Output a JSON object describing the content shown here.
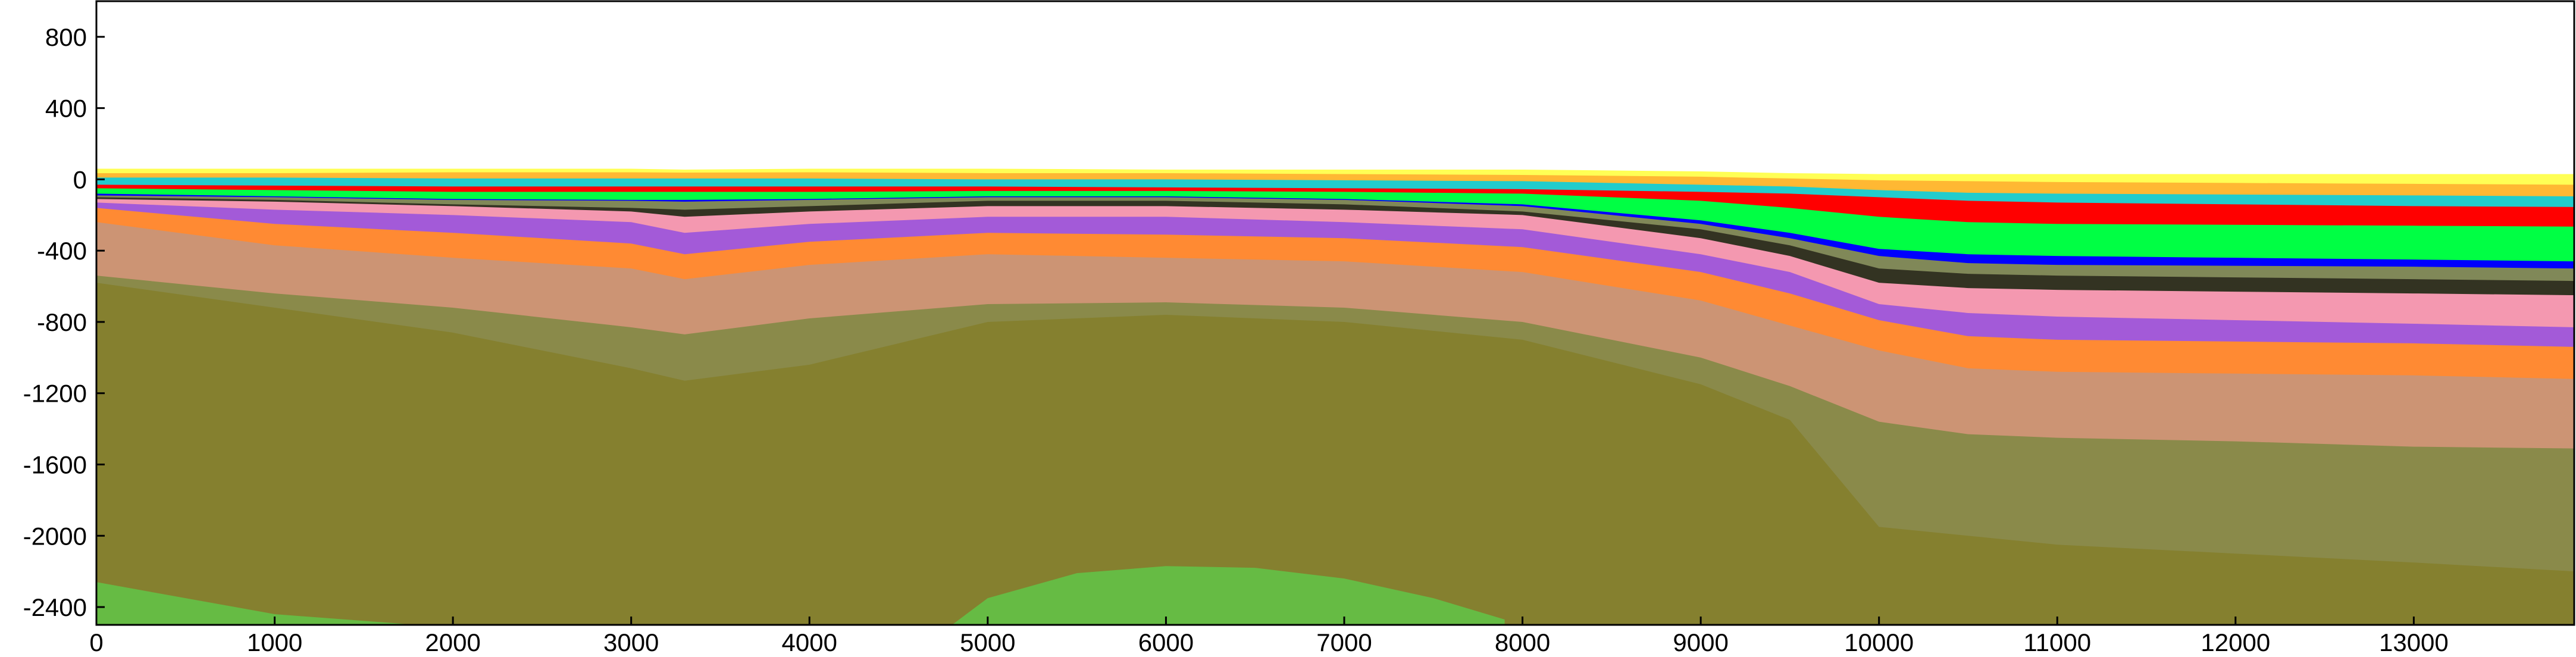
{
  "chart_data": {
    "type": "area",
    "title": "",
    "xlabel": "",
    "ylabel": "",
    "xlim": [
      0,
      13900
    ],
    "ylim": [
      -2500,
      1000
    ],
    "grid": false,
    "x_ticks": [
      0,
      1000,
      2000,
      3000,
      4000,
      5000,
      6000,
      7000,
      8000,
      9000,
      10000,
      11000,
      12000,
      13000
    ],
    "x_tick_labels": [
      "0",
      "1000",
      "2000",
      "3000",
      "4000",
      "5000",
      "6000",
      "7000",
      "8000",
      "9000",
      "10000",
      "11000",
      "12000",
      "13000"
    ],
    "y_ticks": [
      800,
      400,
      0,
      -400,
      -800,
      -1200,
      -1600,
      -2000,
      -2400
    ],
    "y_tick_labels": [
      "800",
      "400",
      "0",
      "-400",
      "-800",
      "-1200",
      "-1600",
      "-2000",
      "-2400"
    ],
    "x": [
      0,
      1000,
      2000,
      3000,
      3300,
      4000,
      5000,
      6000,
      7000,
      8000,
      9000,
      9500,
      10000,
      10500,
      11000,
      12000,
      13000,
      13900
    ],
    "layers": [
      {
        "color": "#ffff55",
        "top": [
          60,
          60,
          60,
          60,
          55,
          60,
          60,
          55,
          55,
          55,
          45,
          35,
          30,
          30,
          30,
          30,
          30,
          30
        ]
      },
      {
        "color": "#ffb833",
        "top": [
          35,
          35,
          40,
          40,
          38,
          40,
          35,
          35,
          30,
          25,
          15,
          5,
          -5,
          -10,
          -15,
          -20,
          -25,
          -30
        ]
      },
      {
        "color": "#22cccc",
        "top": [
          10,
          10,
          5,
          5,
          5,
          5,
          0,
          0,
          -5,
          -10,
          -30,
          -40,
          -60,
          -75,
          -80,
          -85,
          -90,
          -95
        ]
      },
      {
        "color": "#ff0000",
        "top": [
          -30,
          -35,
          -40,
          -40,
          -40,
          -40,
          -40,
          -45,
          -50,
          -55,
          -70,
          -80,
          -100,
          -120,
          -130,
          -140,
          -150,
          -155
        ]
      },
      {
        "color": "#00ff44",
        "top": [
          -50,
          -60,
          -70,
          -70,
          -70,
          -70,
          -65,
          -65,
          -70,
          -80,
          -120,
          -160,
          -210,
          -240,
          -250,
          -255,
          -260,
          -265
        ]
      },
      {
        "color": "#0000ff",
        "top": [
          -80,
          -95,
          -110,
          -115,
          -115,
          -110,
          -95,
          -95,
          -110,
          -140,
          -230,
          -300,
          -390,
          -420,
          -430,
          -440,
          -450,
          -460
        ]
      },
      {
        "color": "#808858",
        "top": [
          -90,
          -100,
          -115,
          -120,
          -125,
          -115,
          -100,
          -100,
          -115,
          -150,
          -250,
          -330,
          -430,
          -470,
          -480,
          -485,
          -490,
          -500
        ]
      },
      {
        "color": "#333322",
        "top": [
          -100,
          -115,
          -140,
          -160,
          -170,
          -150,
          -120,
          -120,
          -140,
          -180,
          -280,
          -370,
          -500,
          -530,
          -540,
          -550,
          -560,
          -570
        ]
      },
      {
        "color": "#f498b0",
        "top": [
          -110,
          -125,
          -150,
          -180,
          -210,
          -180,
          -150,
          -150,
          -170,
          -200,
          -330,
          -430,
          -580,
          -610,
          -620,
          -630,
          -640,
          -650
        ]
      },
      {
        "color": "#a35ad8",
        "top": [
          -130,
          -170,
          -200,
          -240,
          -300,
          -250,
          -210,
          -210,
          -240,
          -280,
          -420,
          -520,
          -700,
          -750,
          -770,
          -790,
          -810,
          -830
        ]
      },
      {
        "color": "#ff8a33",
        "top": [
          -160,
          -250,
          -300,
          -360,
          -420,
          -350,
          -300,
          -310,
          -330,
          -380,
          -520,
          -640,
          -790,
          -880,
          -900,
          -910,
          -920,
          -940
        ]
      },
      {
        "color": "#cc9474",
        "top": [
          -240,
          -370,
          -440,
          -500,
          -560,
          -480,
          -420,
          -440,
          -460,
          -520,
          -680,
          -820,
          -960,
          -1060,
          -1080,
          -1090,
          -1100,
          -1120
        ]
      },
      {
        "color": "#8a8a4a",
        "top": [
          -540,
          -640,
          -720,
          -830,
          -870,
          -780,
          -700,
          -690,
          -720,
          -800,
          -1000,
          -1160,
          -1360,
          -1430,
          -1450,
          -1470,
          -1500,
          -1510
        ]
      },
      {
        "color": "#85802f",
        "top": [
          -580,
          -720,
          -860,
          -1060,
          -1130,
          -1040,
          -800,
          -760,
          -800,
          -900,
          -1150,
          -1350,
          -1950,
          -2000,
          -2050,
          -2100,
          -2150,
          -2200
        ]
      }
    ],
    "green_bodies": [
      {
        "color": "#66bb44",
        "x": [
          0,
          1000,
          1800
        ],
        "y": [
          -2260,
          -2440,
          -2500
        ]
      },
      {
        "color": "#66bb44",
        "x": [
          4800,
          5000,
          5500,
          6000,
          6500,
          7000,
          7500,
          7900
        ],
        "y": [
          -2500,
          -2350,
          -2210,
          -2170,
          -2180,
          -2240,
          -2350,
          -2470
        ]
      }
    ]
  }
}
